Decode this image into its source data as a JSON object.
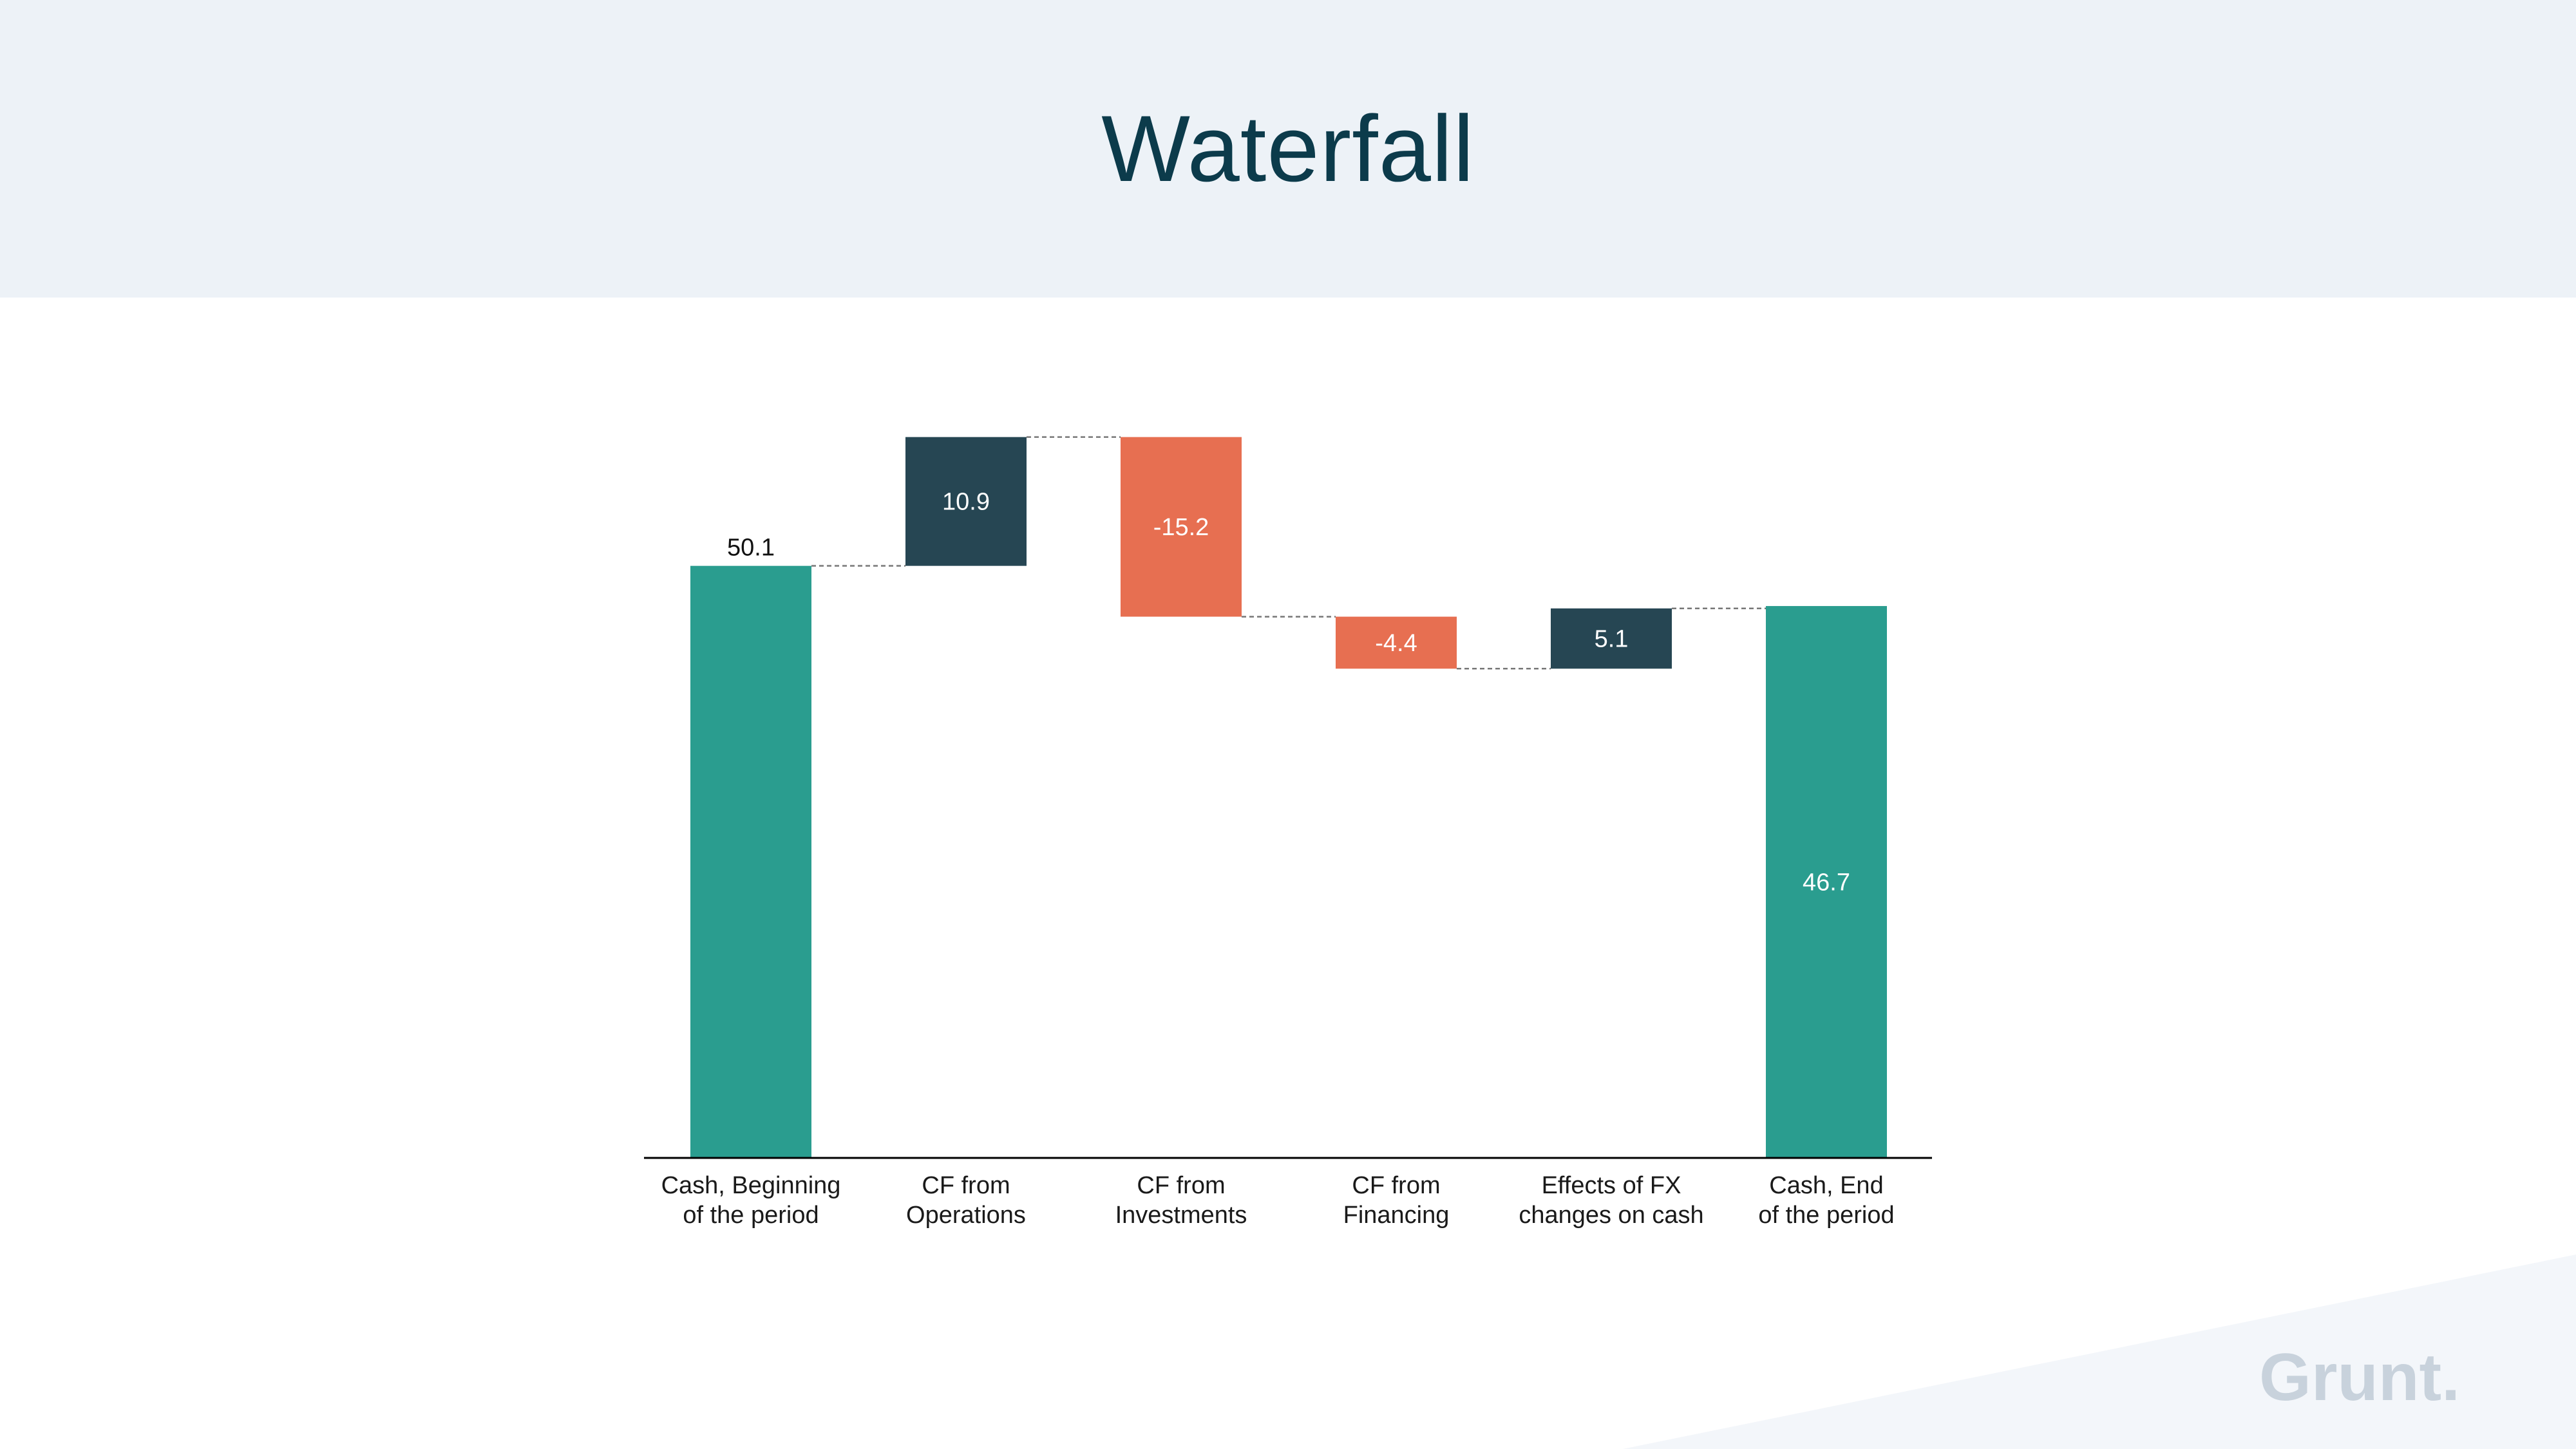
{
  "header": {
    "title": "Waterfall"
  },
  "brand": {
    "logo_text": "Grunt."
  },
  "colors": {
    "total": "#2a9d8f",
    "increase": "#264653",
    "decrease": "#e76f51",
    "axis": "#000000",
    "connector": "#777777",
    "label_dark": "#111111",
    "label_light": "#ffffff"
  },
  "chart_data": {
    "type": "waterfall",
    "categories": [
      [
        "Cash, Beginning",
        "of the period"
      ],
      [
        "CF from",
        "Operations"
      ],
      [
        "CF from",
        "Investments"
      ],
      [
        "CF from",
        "Financing"
      ],
      [
        "Effects of FX",
        "changes on cash"
      ],
      [
        "Cash, End",
        "of the period"
      ]
    ],
    "values": [
      50.1,
      10.9,
      -15.2,
      -4.4,
      5.1,
      46.7
    ],
    "labels": [
      "50.1",
      "10.9",
      "-15.2",
      "-4.4",
      "5.1",
      "46.7"
    ],
    "kinds": [
      "total",
      "increase",
      "decrease",
      "decrease",
      "increase",
      "total"
    ],
    "ylim": [
      0,
      61
    ],
    "grid": false,
    "connectors": true
  }
}
